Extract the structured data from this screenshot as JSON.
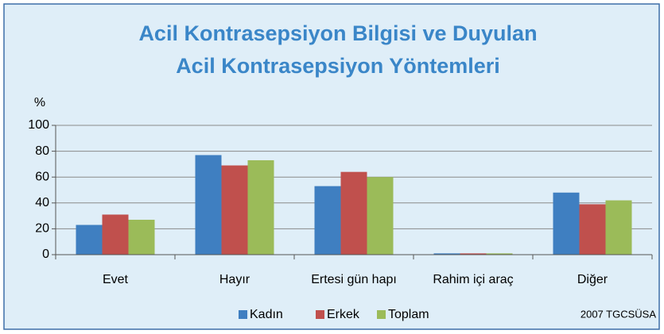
{
  "chart_data": {
    "type": "bar",
    "title": "Acil Kontrasepsiyon Bilgisi ve Duyulan Acil Kontrasepsiyon Yöntemleri",
    "y_label": "%",
    "source": "2007 TGCSÜSA",
    "categories": [
      "Evet",
      "Hayır",
      "Ertesi gün hapı",
      "Rahim içi araç",
      "Diğer"
    ],
    "series": [
      {
        "name": "Kadın",
        "color": "#3f7fc1",
        "values": [
          23,
          77,
          53,
          1,
          48
        ]
      },
      {
        "name": "Erkek",
        "color": "#c0504d",
        "values": [
          31,
          69,
          64,
          1,
          39
        ]
      },
      {
        "name": "Toplam",
        "color": "#9bbb59",
        "values": [
          27,
          73,
          60,
          1,
          42
        ]
      }
    ],
    "ylim": [
      0,
      100
    ],
    "yticks": [
      0,
      20,
      40,
      60,
      80,
      100
    ],
    "grid": true,
    "legend": "bottom"
  }
}
